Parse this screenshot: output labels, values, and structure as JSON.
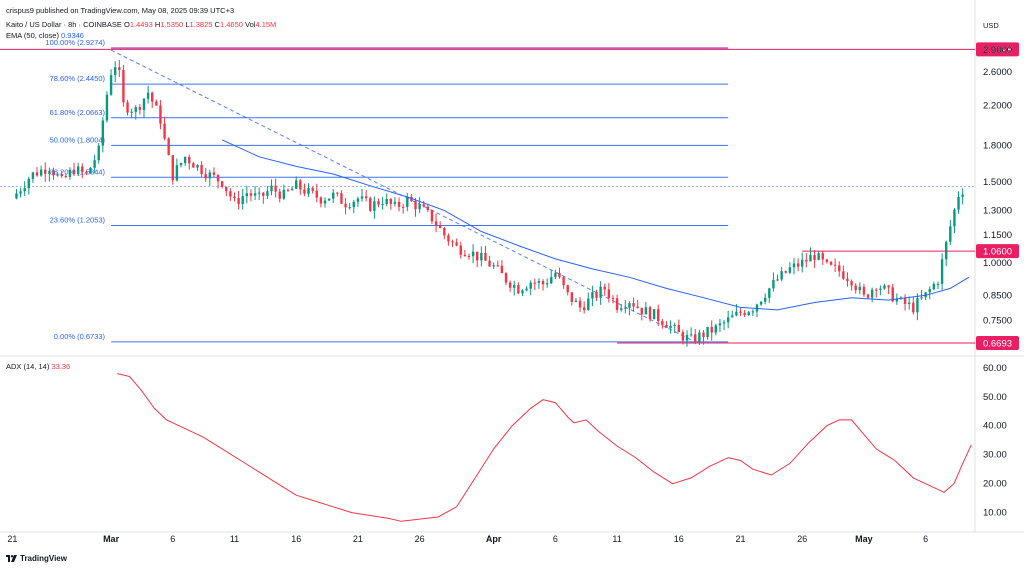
{
  "header": {
    "publisher": "crispus9 published on TradingView.com, May 08, 2025 09:39 UTC+3",
    "currency": "USD",
    "symbol": "Kaito / US Dollar · 8h · COINBASE",
    "ohlc": {
      "o_label": "O",
      "o": "1.4493",
      "h_label": "H",
      "h": "1.5350",
      "l_label": "L",
      "l": "1.3825",
      "c_label": "C",
      "c": "1.4650",
      "vol_label": "Vol",
      "vol": "4.15M"
    },
    "ema": {
      "label": "EMA (50, close)",
      "value": "0.9346"
    },
    "adx": {
      "label": "ADX (14, 14)",
      "value": "33.36"
    }
  },
  "branding": {
    "name": "TradingView"
  },
  "colors": {
    "up": "#089981",
    "down": "#f23645",
    "ema": "#2962ff",
    "fib": "#2962ff",
    "level": "#e91e63",
    "adx": "#f23645",
    "grid": "#e0e3eb"
  },
  "chart_data": [
    {
      "type": "candlestick",
      "title": "Kaito / US Dollar · 8h · COINBASE",
      "scale": "log",
      "ylim": [
        0.64,
        3.05
      ],
      "y_ticks": [
        "0.7500",
        "0.8500",
        "1.0000",
        "1.1500",
        "1.3000",
        "1.5000",
        "1.8000",
        "2.2000",
        "2.6000",
        "2.9000"
      ],
      "y_tick_values": [
        0.75,
        0.85,
        1.0,
        1.15,
        1.3,
        1.5,
        1.8,
        2.2,
        2.6,
        2.9
      ],
      "x_ticks": [
        "21",
        "Mar",
        "6",
        "11",
        "16",
        "21",
        "26",
        "Apr",
        "6",
        "11",
        "16",
        "21",
        "26",
        "May",
        "6"
      ],
      "x_tick_days": [
        -8,
        0,
        5,
        10,
        15,
        20,
        25,
        31,
        36,
        41,
        46,
        51,
        56,
        61,
        66
      ],
      "x_range_days": [
        -9,
        70
      ],
      "price_path": [
        [
          -8,
          1.38
        ],
        [
          -6.5,
          1.55
        ],
        [
          -5,
          1.62
        ],
        [
          -4,
          1.5
        ],
        [
          -3,
          1.6
        ],
        [
          -2,
          1.55
        ],
        [
          -1,
          1.75
        ],
        [
          -0.5,
          2.2
        ],
        [
          0,
          2.6
        ],
        [
          0.5,
          2.75
        ],
        [
          1,
          2.2
        ],
        [
          2,
          2.15
        ],
        [
          3,
          2.35
        ],
        [
          4,
          2.05
        ],
        [
          4.5,
          1.75
        ],
        [
          5,
          1.55
        ],
        [
          6,
          1.7
        ],
        [
          7,
          1.62
        ],
        [
          8,
          1.55
        ],
        [
          9,
          1.5
        ],
        [
          10,
          1.35
        ],
        [
          11,
          1.42
        ],
        [
          12,
          1.38
        ],
        [
          13,
          1.45
        ],
        [
          14,
          1.4
        ],
        [
          15,
          1.47
        ],
        [
          16,
          1.42
        ],
        [
          17,
          1.38
        ],
        [
          18,
          1.4
        ],
        [
          19,
          1.35
        ],
        [
          20,
          1.38
        ],
        [
          21,
          1.33
        ],
        [
          22,
          1.37
        ],
        [
          23,
          1.32
        ],
        [
          24,
          1.37
        ],
        [
          25,
          1.32
        ],
        [
          26,
          1.25
        ],
        [
          27,
          1.15
        ],
        [
          28,
          1.08
        ],
        [
          29,
          1.06
        ],
        [
          30,
          1.02
        ],
        [
          31,
          0.98
        ],
        [
          32,
          0.92
        ],
        [
          33,
          0.88
        ],
        [
          34,
          0.91
        ],
        [
          35,
          0.9
        ],
        [
          36,
          0.95
        ],
        [
          37,
          0.85
        ],
        [
          38,
          0.8
        ],
        [
          39,
          0.84
        ],
        [
          40,
          0.88
        ],
        [
          41,
          0.81
        ],
        [
          42,
          0.83
        ],
        [
          43,
          0.79
        ],
        [
          44,
          0.77
        ],
        [
          45,
          0.74
        ],
        [
          46,
          0.7
        ],
        [
          47,
          0.68
        ],
        [
          48,
          0.7
        ],
        [
          49,
          0.72
        ],
        [
          50,
          0.75
        ],
        [
          51,
          0.78
        ],
        [
          52,
          0.8
        ],
        [
          53,
          0.86
        ],
        [
          54,
          0.92
        ],
        [
          55,
          0.97
        ],
        [
          56,
          1.0
        ],
        [
          57,
          1.04
        ],
        [
          58,
          0.98
        ],
        [
          59,
          0.96
        ],
        [
          60,
          0.92
        ],
        [
          61,
          0.84
        ],
        [
          62,
          0.9
        ],
        [
          63,
          0.86
        ],
        [
          64,
          0.82
        ],
        [
          65,
          0.8
        ],
        [
          66,
          0.85
        ],
        [
          67,
          0.92
        ],
        [
          68,
          1.2
        ],
        [
          68.7,
          1.42
        ],
        [
          69.3,
          1.465
        ]
      ],
      "ema_path": [
        [
          9,
          1.85
        ],
        [
          12,
          1.7
        ],
        [
          15,
          1.62
        ],
        [
          18,
          1.56
        ],
        [
          21,
          1.47
        ],
        [
          24,
          1.39
        ],
        [
          27,
          1.3
        ],
        [
          30,
          1.17
        ],
        [
          33,
          1.09
        ],
        [
          36,
          1.02
        ],
        [
          39,
          0.97
        ],
        [
          42,
          0.93
        ],
        [
          45,
          0.88
        ],
        [
          48,
          0.84
        ],
        [
          51,
          0.8
        ],
        [
          54,
          0.79
        ],
        [
          57,
          0.82
        ],
        [
          60,
          0.84
        ],
        [
          63,
          0.83
        ],
        [
          66,
          0.85
        ],
        [
          68,
          0.88
        ],
        [
          69.5,
          0.93
        ]
      ],
      "fibonacci": [
        {
          "label": "100.00% (2.9274)",
          "price": 2.9274
        },
        {
          "label": "78.60% (2.4450)",
          "price": 2.445
        },
        {
          "label": "61.80% (2.0663)",
          "price": 2.0663
        },
        {
          "label": "50.00% (1.8004)",
          "price": 1.8004
        },
        {
          "label": "38.20% (1.5344)",
          "price": 1.5344
        },
        {
          "label": "23.60% (1.2053)",
          "price": 1.2053
        },
        {
          "label": "0.00% (0.6733)",
          "price": 0.6733
        }
      ],
      "fib_x_range_days": [
        0,
        50
      ],
      "trend_line": {
        "from": [
          0,
          2.9
        ],
        "to": [
          47,
          0.68
        ]
      },
      "levels": [
        {
          "label": "2.9098",
          "price": 2.9098,
          "x_from_days": -9
        },
        {
          "label": "1.0600",
          "price": 1.06,
          "x_from_days": 56
        },
        {
          "label": "0.6693",
          "price": 0.6693,
          "x_from_days": 41
        }
      ],
      "last_price": 1.465
    },
    {
      "type": "line",
      "title": "ADX (14, 14)",
      "ylim": [
        4,
        62
      ],
      "y_ticks": [
        "10.00",
        "20.00",
        "30.00",
        "40.00",
        "50.00",
        "60.00"
      ],
      "y_tick_values": [
        10,
        20,
        30,
        40,
        50,
        60
      ],
      "series": [
        {
          "name": "ADX (14, 14)",
          "points": [
            [
              0.5,
              58
            ],
            [
              1.5,
              57
            ],
            [
              2.5,
              52
            ],
            [
              3.5,
              46
            ],
            [
              4.5,
              42
            ],
            [
              6,
              39
            ],
            [
              7.5,
              36
            ],
            [
              9,
              32
            ],
            [
              10.5,
              28
            ],
            [
              12,
              24
            ],
            [
              13.5,
              20
            ],
            [
              15,
              16
            ],
            [
              16.5,
              14
            ],
            [
              18,
              12
            ],
            [
              19.5,
              10
            ],
            [
              21,
              9
            ],
            [
              22.5,
              8
            ],
            [
              23.5,
              7
            ],
            [
              24.5,
              7.5
            ],
            [
              25.5,
              8
            ],
            [
              26.5,
              8.5
            ],
            [
              28,
              12
            ],
            [
              29.5,
              22
            ],
            [
              31,
              32
            ],
            [
              32.5,
              40
            ],
            [
              34,
              46
            ],
            [
              35,
              49
            ],
            [
              36,
              48
            ],
            [
              37,
              43
            ],
            [
              37.5,
              41
            ],
            [
              38.5,
              42
            ],
            [
              39.5,
              38
            ],
            [
              41,
              33
            ],
            [
              42.5,
              29
            ],
            [
              44,
              24
            ],
            [
              45.5,
              20
            ],
            [
              47,
              22
            ],
            [
              48.5,
              26
            ],
            [
              50,
              29
            ],
            [
              51,
              28
            ],
            [
              52,
              25
            ],
            [
              53.5,
              23
            ],
            [
              55,
              27
            ],
            [
              56.5,
              34
            ],
            [
              58,
              40
            ],
            [
              59,
              42
            ],
            [
              60,
              42
            ],
            [
              61,
              37
            ],
            [
              62,
              32
            ],
            [
              63.5,
              28
            ],
            [
              65,
              22
            ],
            [
              66.5,
              19
            ],
            [
              67.5,
              17
            ],
            [
              68.3,
              20
            ],
            [
              69,
              27
            ],
            [
              69.7,
              33.36
            ]
          ]
        }
      ]
    }
  ]
}
